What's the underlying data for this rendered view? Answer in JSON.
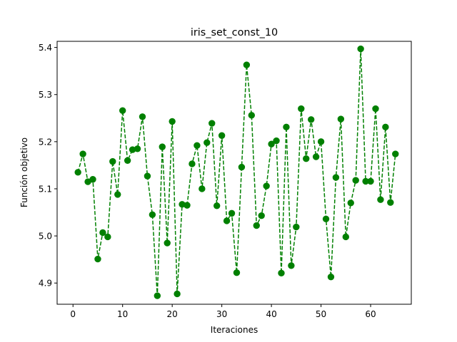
{
  "chart_data": {
    "type": "line",
    "title": "iris_set_const_10",
    "xlabel": "Iteraciones",
    "ylabel": "Función objetivo",
    "xlim": [
      -3.2,
      68.2
    ],
    "ylim": [
      4.855,
      5.413
    ],
    "xticks": [
      0,
      10,
      20,
      30,
      40,
      50,
      60
    ],
    "yticks": [
      4.9,
      5.0,
      5.1,
      5.2,
      5.3,
      5.4
    ],
    "xtick_labels": [
      "0",
      "10",
      "20",
      "30",
      "40",
      "50",
      "60"
    ],
    "ytick_labels": [
      "4.9",
      "5.0",
      "5.1",
      "5.2",
      "5.3",
      "5.4"
    ],
    "grid": false,
    "series": [
      {
        "color": "#008000",
        "line_style": "dashed",
        "marker": "circle",
        "x": [
          1,
          2,
          3,
          4,
          5,
          6,
          7,
          8,
          9,
          10,
          11,
          12,
          13,
          14,
          15,
          16,
          17,
          18,
          19,
          20,
          21,
          22,
          23,
          24,
          25,
          26,
          27,
          28,
          29,
          30,
          31,
          32,
          33,
          34,
          35,
          36,
          37,
          38,
          39,
          40,
          41,
          42,
          43,
          44,
          45,
          46,
          47,
          48,
          49,
          50,
          51,
          52,
          53,
          54,
          55,
          56,
          57,
          58,
          59,
          60,
          61,
          62,
          63,
          64,
          65
        ],
        "y": [
          5.135,
          5.174,
          5.115,
          5.12,
          4.951,
          5.007,
          4.998,
          5.158,
          5.088,
          5.266,
          5.16,
          5.183,
          5.185,
          5.253,
          5.127,
          5.045,
          4.873,
          5.189,
          4.985,
          5.243,
          4.877,
          5.067,
          5.065,
          5.153,
          5.192,
          5.1,
          5.198,
          5.239,
          5.064,
          5.213,
          5.032,
          5.048,
          4.922,
          5.146,
          5.363,
          5.256,
          5.022,
          5.043,
          5.106,
          5.195,
          5.202,
          4.921,
          5.231,
          4.937,
          5.019,
          5.27,
          5.164,
          5.247,
          5.168,
          5.2,
          5.036,
          4.913,
          5.124,
          5.248,
          4.998,
          5.07,
          5.118,
          5.397,
          5.116,
          5.116,
          5.27,
          5.077,
          5.231,
          5.071,
          5.174
        ]
      }
    ]
  }
}
